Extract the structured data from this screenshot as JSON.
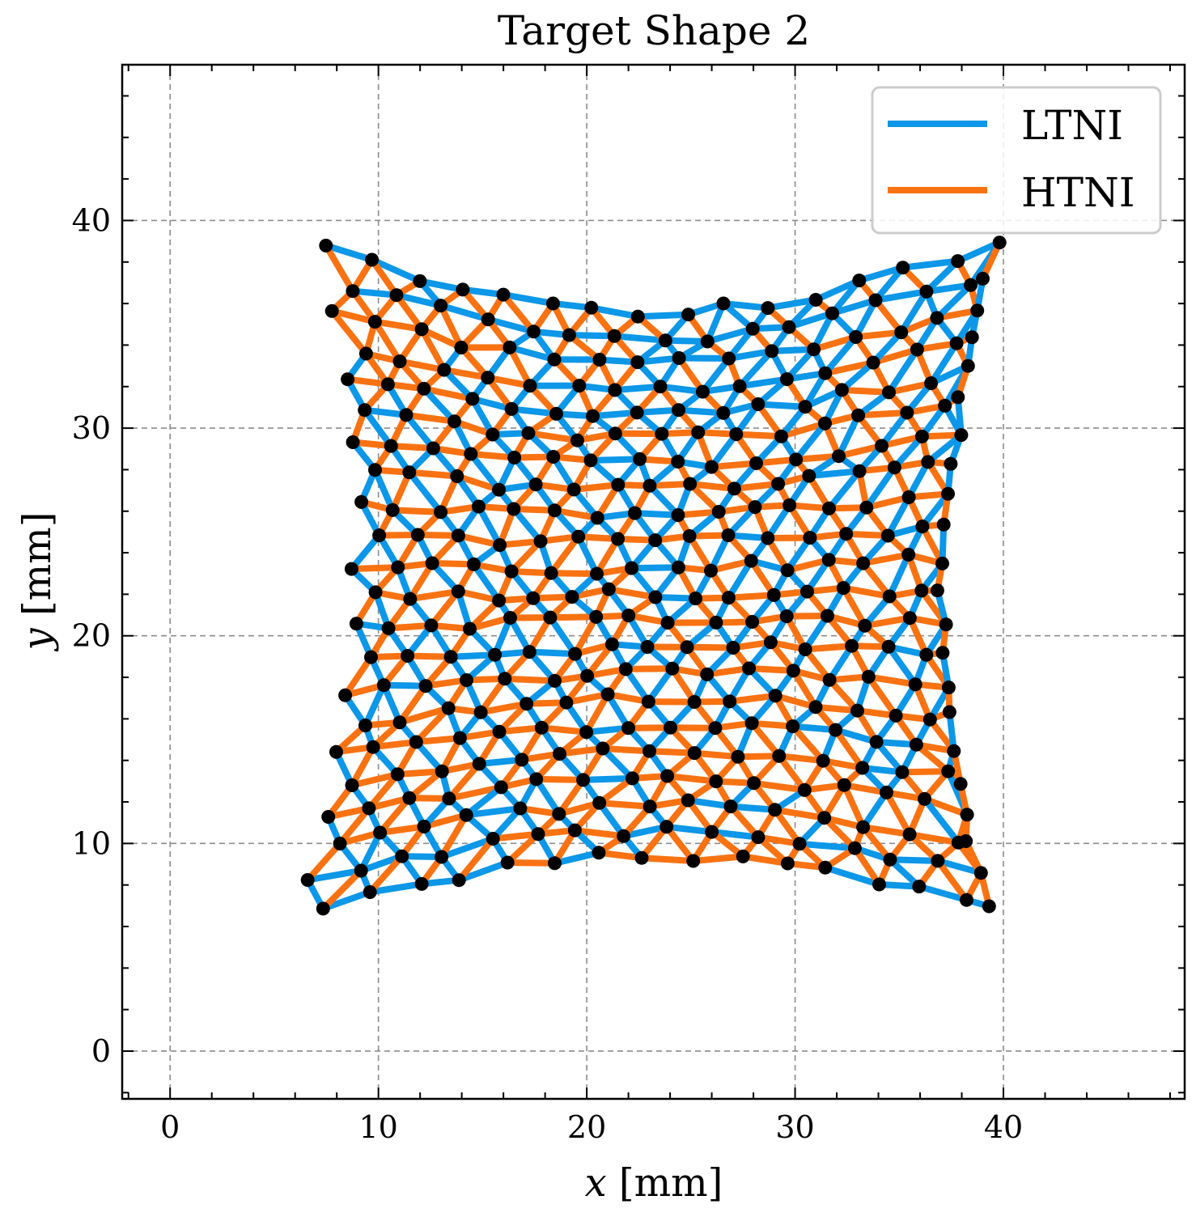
{
  "chart_data": {
    "type": "line",
    "title": "Target Shape 2",
    "xlabel": "x [mm]",
    "ylabel": "y [mm]",
    "xlim": [
      -2.3,
      48.7
    ],
    "ylim": [
      -2.3,
      47.5
    ],
    "xticks": [
      0,
      10,
      20,
      30,
      40
    ],
    "yticks": [
      0,
      10,
      20,
      30,
      40
    ],
    "grid": true,
    "legend_position": "top-right",
    "series": [
      {
        "name": "LTNI",
        "color": "#0c97e8"
      },
      {
        "name": "HTNI",
        "color": "#f97212"
      }
    ],
    "node_color": "#000000",
    "mesh": {
      "rows": 22,
      "cols": 16,
      "corners": {
        "top_left": [
          7.5,
          38.6
        ],
        "top_right": [
          39.7,
          38.9
        ],
        "bottom_left": [
          6.4,
          6.6
        ],
        "bottom_right": [
          39.4,
          7.0
        ]
      },
      "waist": {
        "top_sag": 3.2,
        "bottom_rise": 2.6,
        "left_indent": 2.0,
        "right_indent": 2.4
      }
    }
  }
}
